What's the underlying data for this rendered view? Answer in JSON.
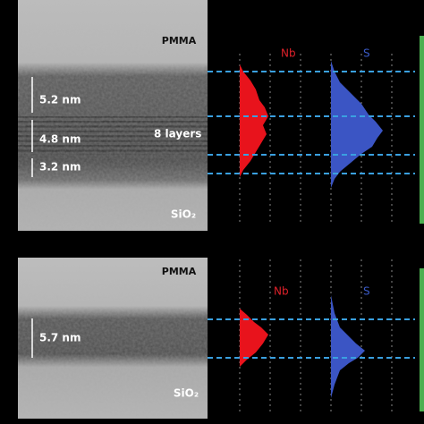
{
  "top_panel": {
    "top_label": "PMMA",
    "bottom_label": "SiO₂",
    "thicknesses": [
      "5.2 nm",
      "4.8 nm",
      "3.2 nm"
    ],
    "layers_label": "8 layers",
    "element_1": "Nb",
    "element_2": "S"
  },
  "bottom_panel": {
    "top_label": "PMMA",
    "bottom_label": "SiO₂",
    "thickness": "5.7 nm",
    "element_1": "Nb",
    "element_2": "S"
  }
}
